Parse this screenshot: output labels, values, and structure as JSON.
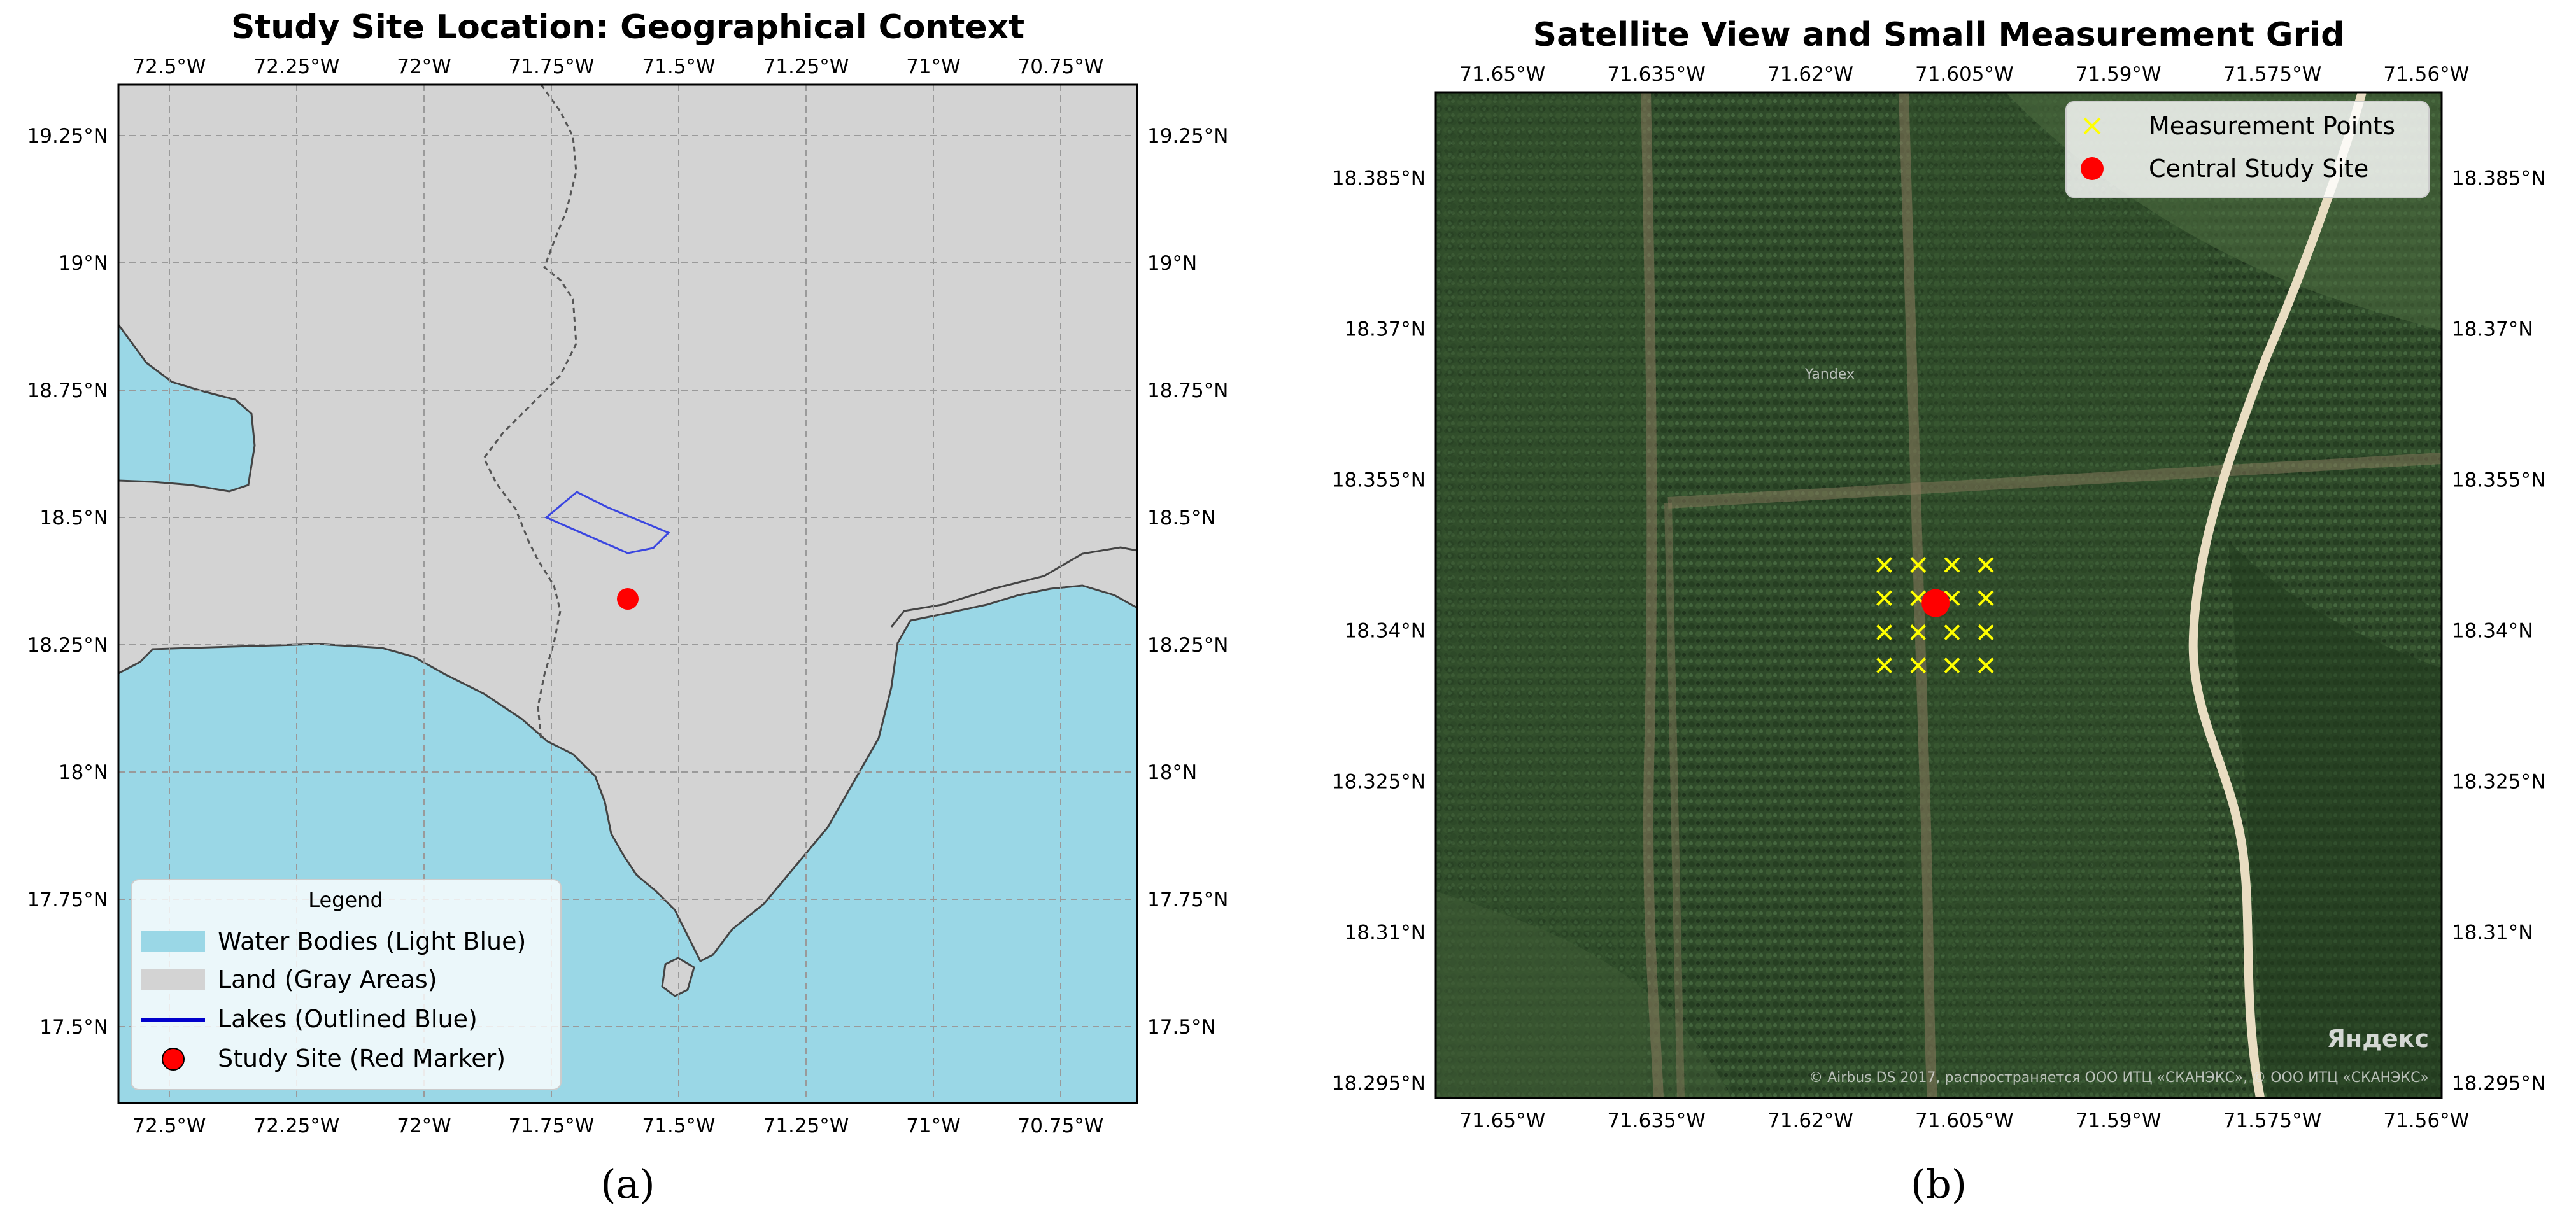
{
  "figure": {
    "panel_a_label": "(a)",
    "panel_b_label": "(b)"
  },
  "colors": {
    "water": "#9ad7e6",
    "land": "#d3d3d3",
    "lake_outline": "#3a46e0",
    "study_site": "#ff0000",
    "measurement": "#ffff00",
    "satellite_base": "#2f4a2a"
  },
  "chart_data": [
    {
      "type": "map",
      "title": "Study Site Location: Geographical Context",
      "xlim": [
        -72.6,
        -70.6
      ],
      "ylim": [
        17.35,
        19.35
      ],
      "x_ticks": [
        -72.5,
        -72.25,
        -72.0,
        -71.75,
        -71.5,
        -71.25,
        -71.0,
        -70.75
      ],
      "x_tick_labels": [
        "72.5°W",
        "72.25°W",
        "72°W",
        "71.75°W",
        "71.5°W",
        "71.25°W",
        "71°W",
        "70.75°W"
      ],
      "y_ticks": [
        17.5,
        17.75,
        18.0,
        18.25,
        18.5,
        18.75,
        19.0,
        19.25
      ],
      "y_tick_labels": [
        "17.5°N",
        "17.75°N",
        "18°N",
        "18.25°N",
        "18.5°N",
        "18.75°N",
        "19°N",
        "19.25°N"
      ],
      "grid": true,
      "study_site": {
        "lon": -71.6,
        "lat": 18.34
      },
      "lake": [
        [
          -71.76,
          18.5
        ],
        [
          -71.7,
          18.55
        ],
        [
          -71.64,
          18.52
        ],
        [
          -71.52,
          18.47
        ],
        [
          -71.55,
          18.44
        ],
        [
          -71.6,
          18.43
        ]
      ],
      "legend_placement": "bottom-left",
      "legend": {
        "title": "Legend",
        "items": [
          {
            "kind": "patch",
            "color": "#9ad7e6",
            "label": "Water Bodies (Light Blue)"
          },
          {
            "kind": "patch",
            "color": "#d3d3d3",
            "label": "Land (Gray Areas)"
          },
          {
            "kind": "line",
            "color": "#0000cc",
            "label": "Lakes (Outlined Blue)"
          },
          {
            "kind": "marker",
            "color": "#ff0000",
            "label": "Study Site (Red Marker)"
          }
        ]
      }
    },
    {
      "type": "map",
      "title": "Satellite View and Small Measurement Grid",
      "xlim": [
        -71.6565,
        -71.5585
      ],
      "ylim": [
        18.2935,
        18.3935
      ],
      "x_ticks": [
        -71.65,
        -71.635,
        -71.62,
        -71.605,
        -71.59,
        -71.575,
        -71.56
      ],
      "x_tick_labels": [
        "71.65°W",
        "71.635°W",
        "71.62°W",
        "71.605°W",
        "71.59°W",
        "71.575°W",
        "71.56°W"
      ],
      "y_ticks": [
        18.295,
        18.31,
        18.325,
        18.34,
        18.355,
        18.37,
        18.385
      ],
      "y_tick_labels": [
        "18.295°N",
        "18.31°N",
        "18.325°N",
        "18.34°N",
        "18.355°N",
        "18.37°N",
        "18.385°N"
      ],
      "grid": false,
      "central_site": {
        "lon": -71.6078,
        "lat": 18.3427
      },
      "measurement_points": {
        "lons": [
          -71.6128,
          -71.6095,
          -71.6062,
          -71.6029
        ],
        "lats": [
          18.3465,
          18.3432,
          18.3398,
          18.3365
        ]
      },
      "legend_placement": "top-right",
      "legend": {
        "items": [
          {
            "kind": "x",
            "color": "#ffff00",
            "label": "Measurement Points"
          },
          {
            "kind": "marker",
            "color": "#ff0000",
            "label": "Central Study Site"
          }
        ]
      },
      "imagery_credit": "© Airbus DS 2017, распространяется ООО ИТЦ «СКАНЭКС», © ООО ИТЦ «СКАНЭКС»",
      "brand_label": "Яндекс",
      "faint_label": "Yandex"
    }
  ]
}
